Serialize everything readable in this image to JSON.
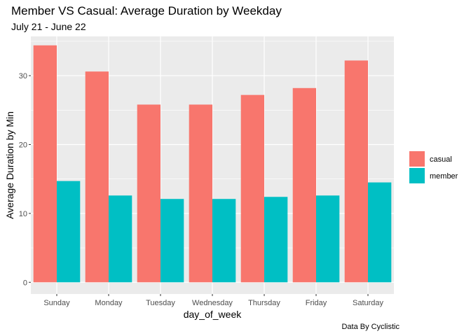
{
  "chart_data": {
    "type": "bar",
    "title": "Member VS Casual: Average Duration by Weekday",
    "subtitle": "July 21 - June 22",
    "xlabel": "day_of_week",
    "ylabel": "Average Duration by Min",
    "caption": "Data By Cyclistic",
    "categories": [
      "Sunday",
      "Monday",
      "Tuesday",
      "Wednesday",
      "Thursday",
      "Friday",
      "Saturday"
    ],
    "series": [
      {
        "name": "casual",
        "color": "#F8766D",
        "values": [
          34.4,
          30.6,
          25.8,
          25.8,
          27.2,
          28.2,
          32.2
        ]
      },
      {
        "name": "member",
        "color": "#00BFC4",
        "values": [
          14.7,
          12.6,
          12.1,
          12.1,
          12.4,
          12.6,
          14.5
        ]
      }
    ],
    "ylim": [
      -1.7,
      35.7
    ],
    "yticks": [
      0,
      10,
      20,
      30
    ],
    "grid": true,
    "legend_position": "right",
    "panel_color": "#EBEBEB"
  }
}
